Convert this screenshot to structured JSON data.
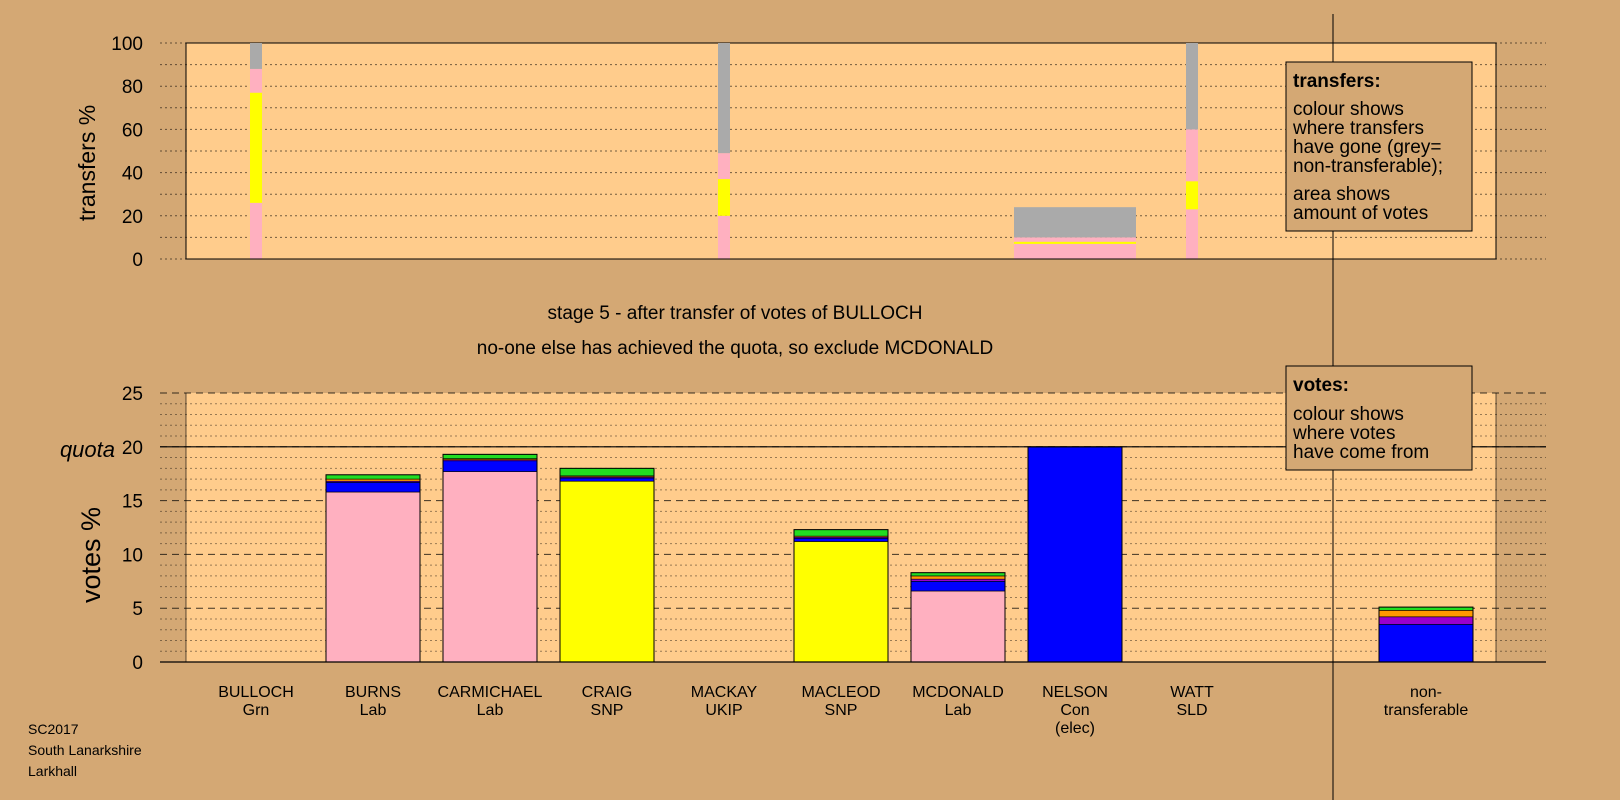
{
  "colors": {
    "background": "#D4A874",
    "plot_area": "#FFCC8C",
    "legend_box": "#D4A874",
    "Lab": "#FFB0C0",
    "SNP": "#FFFF00",
    "Con": "#0000FF",
    "Grn": "#22DD22",
    "SLD": "#FF9900",
    "UKIP": "#9900CC",
    "nontransferable": "#AAAAAA"
  },
  "titles": {
    "stage": "stage 5 - after transfer of votes of BULLOCH",
    "action": "no-one else has achieved the quota, so exclude MCDONALD"
  },
  "legend_transfers": {
    "heading": "transfers:",
    "lines": [
      "colour shows",
      "where transfers",
      "have gone (grey=",
      "non-transferable);",
      "area shows",
      "amount of votes"
    ]
  },
  "legend_votes": {
    "heading": "votes:",
    "lines": [
      "colour shows",
      "where votes",
      "have come from"
    ]
  },
  "footer": [
    "SC2017",
    "South Lanarkshire",
    "Larkhall"
  ],
  "chart_data": [
    {
      "type": "bar",
      "stacked": true,
      "ylabel": "transfers %",
      "ylim": [
        0,
        100
      ],
      "yticks": [
        0,
        20,
        40,
        60,
        80,
        100
      ],
      "bars": [
        {
          "candidate": "BULLOCH",
          "width": "narrow",
          "segments": [
            {
              "party": "Lab",
              "value": 26
            },
            {
              "party": "SNP",
              "value": 51
            },
            {
              "party": "Lab",
              "value": 11
            },
            {
              "party": "nontransferable",
              "value": 12
            }
          ]
        },
        {
          "candidate": "MACKAY",
          "width": "narrow",
          "segments": [
            {
              "party": "Lab",
              "value": 20
            },
            {
              "party": "SNP",
              "value": 17
            },
            {
              "party": "Lab",
              "value": 12
            },
            {
              "party": "nontransferable",
              "value": 51
            }
          ]
        },
        {
          "candidate": "NELSON",
          "width": "wide",
          "segments": [
            {
              "party": "Lab",
              "value": 7
            },
            {
              "party": "SNP",
              "value": 1
            },
            {
              "party": "Lab",
              "value": 2
            },
            {
              "party": "nontransferable",
              "value": 14
            }
          ]
        },
        {
          "candidate": "WATT",
          "width": "narrow",
          "segments": [
            {
              "party": "Lab",
              "value": 23
            },
            {
              "party": "SNP",
              "value": 13
            },
            {
              "party": "Lab",
              "value": 24
            },
            {
              "party": "nontransferable",
              "value": 40
            }
          ]
        }
      ]
    },
    {
      "type": "bar",
      "stacked": true,
      "ylabel": "votes %",
      "ylim": [
        0,
        25
      ],
      "yticks": [
        0,
        5,
        10,
        15,
        20,
        25
      ],
      "quota": {
        "label": "quota",
        "value": 20
      },
      "categories": [
        {
          "name": "BULLOCH",
          "party": "Grn",
          "note": ""
        },
        {
          "name": "BURNS",
          "party": "Lab",
          "note": ""
        },
        {
          "name": "CARMICHAEL",
          "party": "Lab",
          "note": ""
        },
        {
          "name": "CRAIG",
          "party": "SNP",
          "note": ""
        },
        {
          "name": "MACKAY",
          "party": "UKIP",
          "note": ""
        },
        {
          "name": "MACLEOD",
          "party": "SNP",
          "note": ""
        },
        {
          "name": "MCDONALD",
          "party": "Lab",
          "note": ""
        },
        {
          "name": "NELSON",
          "party": "Con",
          "note": "(elec)"
        },
        {
          "name": "WATT",
          "party": "SLD",
          "note": ""
        },
        {
          "name": "",
          "party": "",
          "note": ""
        },
        {
          "name": "non-",
          "party": "transferable",
          "note": ""
        }
      ],
      "series_stacks": [
        [],
        [
          {
            "party": "Lab",
            "value": 15.8
          },
          {
            "party": "Con",
            "value": 0.9
          },
          {
            "party": "UKIP",
            "value": 0.1
          },
          {
            "party": "SLD",
            "value": 0.2
          },
          {
            "party": "Grn",
            "value": 0.4
          }
        ],
        [
          {
            "party": "Lab",
            "value": 17.7
          },
          {
            "party": "Con",
            "value": 1.0
          },
          {
            "party": "UKIP",
            "value": 0.1
          },
          {
            "party": "SLD",
            "value": 0.1
          },
          {
            "party": "Grn",
            "value": 0.4
          }
        ],
        [
          {
            "party": "SNP",
            "value": 16.8
          },
          {
            "party": "Con",
            "value": 0.3
          },
          {
            "party": "UKIP",
            "value": 0.1
          },
          {
            "party": "SLD",
            "value": 0.1
          },
          {
            "party": "Grn",
            "value": 0.7
          }
        ],
        [],
        [
          {
            "party": "SNP",
            "value": 11.2
          },
          {
            "party": "Con",
            "value": 0.3
          },
          {
            "party": "UKIP",
            "value": 0.1
          },
          {
            "party": "SLD",
            "value": 0.1
          },
          {
            "party": "Grn",
            "value": 0.6
          }
        ],
        [
          {
            "party": "Lab",
            "value": 6.6
          },
          {
            "party": "Con",
            "value": 0.9
          },
          {
            "party": "UKIP",
            "value": 0.2
          },
          {
            "party": "SLD",
            "value": 0.3
          },
          {
            "party": "Grn",
            "value": 0.3
          }
        ],
        [
          {
            "party": "Con",
            "value": 20.0
          }
        ],
        [],
        [],
        [
          {
            "party": "Con",
            "value": 3.5
          },
          {
            "party": "UKIP",
            "value": 0.7
          },
          {
            "party": "SLD",
            "value": 0.6
          },
          {
            "party": "Grn",
            "value": 0.3
          }
        ]
      ]
    }
  ]
}
